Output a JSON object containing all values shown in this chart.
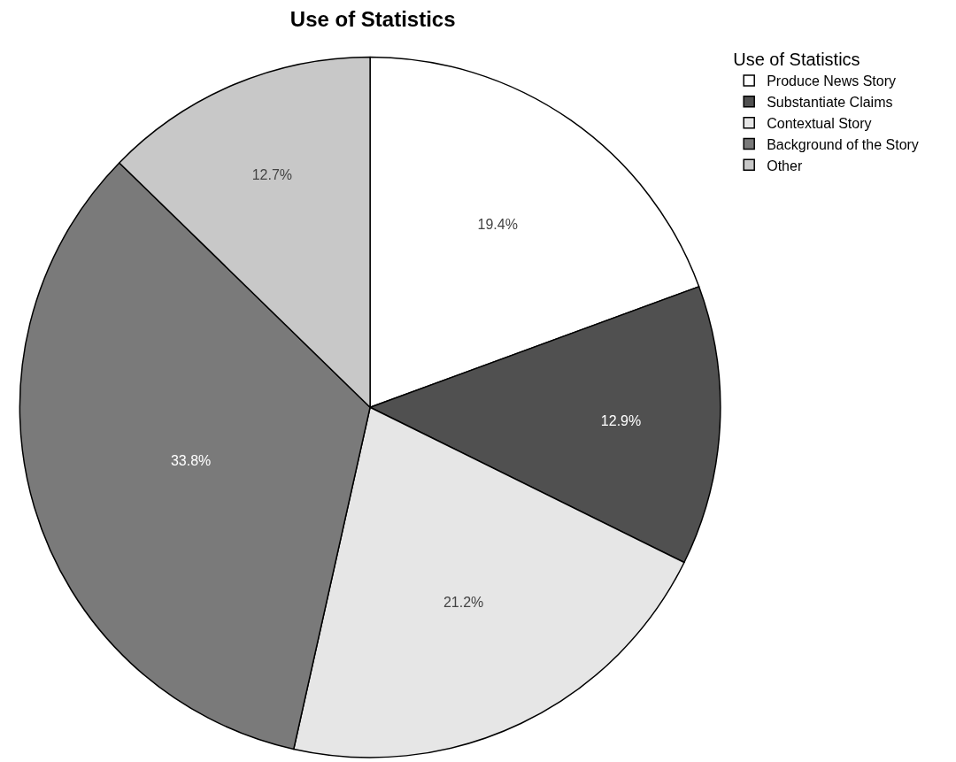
{
  "chart_data": {
    "type": "pie",
    "title": "Use of Statistics",
    "legend_title": "Use of Statistics",
    "legend": "top right",
    "categories": [
      "Produce News Story",
      "Substantiate Claims",
      "Contextual Story",
      "Background of the Story",
      "Other"
    ],
    "values": [
      19.4,
      12.9,
      21.2,
      33.8,
      12.7
    ],
    "value_labels": [
      "19.4%",
      "12.9%",
      "21.2%",
      "33.8%",
      "12.7%"
    ],
    "colors": [
      "#ffffff",
      "#505050",
      "#e6e6e6",
      "#7a7a7a",
      "#c8c8c8"
    ]
  }
}
